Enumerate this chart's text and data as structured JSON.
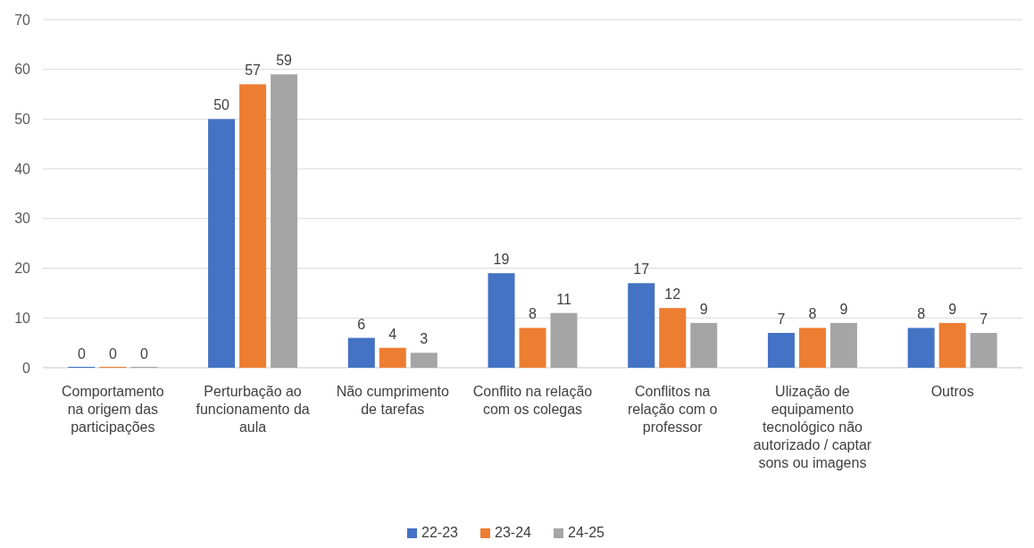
{
  "chart_data": {
    "type": "bar",
    "categories": [
      "Comportamento na origem das participações",
      "Perturbação ao funcionamento da aula",
      "Não cumprimento de tarefas",
      "Conflito na relação com os colegas",
      "Conflitos na relação com o professor",
      "Ulização de equipamento tecnológico não autorizado / captar sons ou imagens",
      "Outros"
    ],
    "series": [
      {
        "name": "22-23",
        "color": "#4472c4",
        "values": [
          0,
          50,
          6,
          19,
          17,
          7,
          8
        ]
      },
      {
        "name": "23-24",
        "color": "#ed7d31",
        "values": [
          0,
          57,
          4,
          8,
          12,
          8,
          9
        ]
      },
      {
        "name": "24-25",
        "color": "#a5a5a5",
        "values": [
          0,
          59,
          3,
          11,
          9,
          9,
          7
        ]
      }
    ],
    "ylim": [
      0,
      70
    ],
    "yticks": [
      0,
      10,
      20,
      30,
      40,
      50,
      60,
      70
    ],
    "grid": "y",
    "data_labels": true,
    "legend": "bottom"
  }
}
